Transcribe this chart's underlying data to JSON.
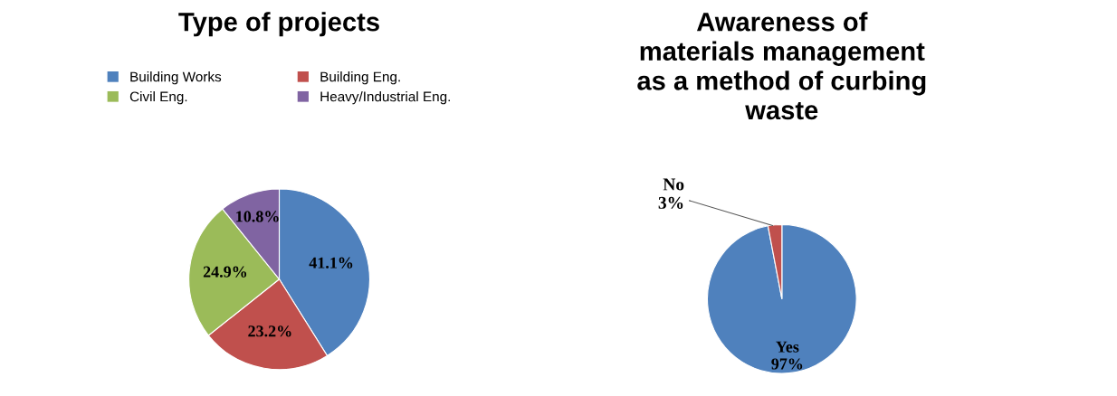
{
  "chart_data": [
    {
      "type": "pie",
      "title": "Type of projects",
      "categories": [
        "Building Works",
        "Building Eng.",
        "Civil Eng.",
        "Heavy/Industrial Eng."
      ],
      "values": [
        41.1,
        23.2,
        24.9,
        10.8
      ],
      "colors": [
        "#4f81bd",
        "#c0504d",
        "#9bbb59",
        "#8064a2"
      ],
      "value_labels": [
        "41.1%",
        "23.2%",
        "24.9%",
        "10.8%"
      ],
      "legend": "top"
    },
    {
      "type": "pie",
      "title": "Awareness of\nmaterials management\nas a method of curbing\nwaste",
      "categories": [
        "Yes",
        "No"
      ],
      "values": [
        97,
        3
      ],
      "colors": [
        "#4f81bd",
        "#c0504d"
      ],
      "value_labels": [
        "97%",
        "3%"
      ]
    }
  ]
}
